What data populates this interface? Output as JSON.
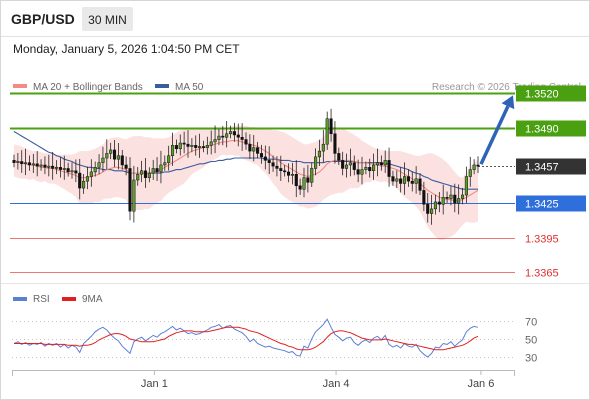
{
  "header": {
    "symbol": "GBP/USD",
    "interval": "30 MIN",
    "datetime": "Monday, January 5, 2026 1:04:50 PM CET",
    "credit": "Research © 2026 Trading Central"
  },
  "legend": {
    "ma20_label": "MA 20 + Bollinger Bands",
    "ma20_color": "#f28b82",
    "ma50_label": "MA 50",
    "ma50_color": "#3b5c9e",
    "rsi_label": "RSI",
    "rsi_color": "#5b7fd6",
    "rsi9_label": "9MA",
    "rsi9_color": "#e02020"
  },
  "chart_data": [
    {
      "type": "candlestick",
      "title": "GBP/USD",
      "ylim": [
        1.3355,
        1.3535
      ],
      "x_ticks": [
        {
          "label": "Jan 1",
          "at": 0.29
        },
        {
          "label": "Jan 4",
          "at": 0.66
        },
        {
          "label": "Jan 6",
          "at": 0.955
        }
      ],
      "levels": [
        {
          "label": "1.3520",
          "value": 1.352,
          "kind": "resistance",
          "color": "#4aa010",
          "text_color": "#ffffff"
        },
        {
          "label": "1.3490",
          "value": 1.349,
          "kind": "resistance",
          "color": "#4aa010",
          "text_color": "#ffffff"
        },
        {
          "label": "1.3457",
          "value": 1.3457,
          "kind": "current",
          "color": "#333333",
          "text_color": "#ffffff"
        },
        {
          "label": "1.3425",
          "value": 1.3425,
          "kind": "pivot",
          "color": "#2f6fdc",
          "text_color": "#ffffff"
        },
        {
          "label": "1.3395",
          "value": 1.3395,
          "kind": "support",
          "color": "#e04040",
          "text_color": "#e03030"
        },
        {
          "label": "1.3365",
          "value": 1.3365,
          "kind": "support",
          "color": "#e04040",
          "text_color": "#e03030"
        }
      ],
      "closes": [
        1.346,
        1.3461,
        1.3459,
        1.346,
        1.3458,
        1.3459,
        1.3457,
        1.3458,
        1.3456,
        1.3457,
        1.3455,
        1.3456,
        1.3454,
        1.3455,
        1.3452,
        1.3453,
        1.3451,
        1.3438,
        1.3444,
        1.3448,
        1.3452,
        1.3456,
        1.346,
        1.3464,
        1.3468,
        1.3471,
        1.3463,
        1.3466,
        1.3458,
        1.3455,
        1.3418,
        1.3445,
        1.345,
        1.3453,
        1.3447,
        1.3451,
        1.3455,
        1.3452,
        1.3458,
        1.346,
        1.3466,
        1.3475,
        1.3472,
        1.3477,
        1.3476,
        1.3474,
        1.3475,
        1.3473,
        1.3474,
        1.3473,
        1.3475,
        1.3478,
        1.348,
        1.3483,
        1.3482,
        1.3485,
        1.3487,
        1.3484,
        1.3482,
        1.348,
        1.3476,
        1.347,
        1.3473,
        1.3468,
        1.3465,
        1.3462,
        1.346,
        1.3457,
        1.3455,
        1.3453,
        1.3452,
        1.3449,
        1.345,
        1.344,
        1.3437,
        1.3447,
        1.3443,
        1.3455,
        1.3465,
        1.347,
        1.3476,
        1.3498,
        1.3485,
        1.3468,
        1.3462,
        1.3455,
        1.3458,
        1.346,
        1.3454,
        1.345,
        1.3454,
        1.3456,
        1.3453,
        1.3458,
        1.346,
        1.3458,
        1.3462,
        1.3448,
        1.3444,
        1.3446,
        1.3442,
        1.3448,
        1.3444,
        1.3442,
        1.3446,
        1.3436,
        1.3424,
        1.3416,
        1.342,
        1.3426,
        1.3424,
        1.343,
        1.3429,
        1.3432,
        1.3425,
        1.3429,
        1.3432,
        1.3448,
        1.3454,
        1.3458,
        1.3457
      ],
      "ma20": [
        1.3462,
        1.3461,
        1.346,
        1.3459,
        1.3458,
        1.3458,
        1.3457,
        1.3456,
        1.3456,
        1.3455,
        1.3455,
        1.3454,
        1.3453,
        1.3452,
        1.3451,
        1.345,
        1.3449,
        1.3447,
        1.3447,
        1.3447,
        1.3448,
        1.3449,
        1.345,
        1.3452,
        1.3454,
        1.3455,
        1.3456,
        1.3456,
        1.3455,
        1.3454,
        1.3451,
        1.3451,
        1.3451,
        1.3451,
        1.3451,
        1.3451,
        1.3452,
        1.3453,
        1.3454,
        1.3456,
        1.3458,
        1.346,
        1.3462,
        1.3464,
        1.3466,
        1.3468,
        1.347,
        1.3471,
        1.3472,
        1.3473,
        1.3474,
        1.3475,
        1.3476,
        1.3477,
        1.3478,
        1.3478,
        1.3479,
        1.3479,
        1.3479,
        1.3478,
        1.3477,
        1.3476,
        1.3475,
        1.3474,
        1.3472,
        1.347,
        1.3468,
        1.3465,
        1.3463,
        1.346,
        1.3458,
        1.3456,
        1.3454,
        1.3452,
        1.345,
        1.3449,
        1.3448,
        1.3449,
        1.345,
        1.3452,
        1.3455,
        1.3459,
        1.3461,
        1.3462,
        1.3462,
        1.3462,
        1.3462,
        1.3462,
        1.3461,
        1.346,
        1.346,
        1.346,
        1.3459,
        1.3459,
        1.3458,
        1.3457,
        1.3457,
        1.3456,
        1.3455,
        1.3454,
        1.3452,
        1.345,
        1.3448,
        1.3446,
        1.3444,
        1.3442,
        1.3439,
        1.3436,
        1.3434,
        1.3432,
        1.343,
        1.3429,
        1.3428,
        1.3428,
        1.3427,
        1.3427,
        1.3428,
        1.343,
        1.3432,
        1.3434,
        1.3436
      ],
      "bb_upper": [
        1.3476,
        1.3475,
        1.3474,
        1.3472,
        1.3471,
        1.347,
        1.347,
        1.3469,
        1.3468,
        1.3468,
        1.3468,
        1.3467,
        1.3467,
        1.3467,
        1.3467,
        1.3467,
        1.3468,
        1.347,
        1.347,
        1.347,
        1.3471,
        1.3472,
        1.3474,
        1.3476,
        1.3479,
        1.3481,
        1.3482,
        1.3482,
        1.3481,
        1.348,
        1.3482,
        1.3483,
        1.3483,
        1.3483,
        1.3482,
        1.3482,
        1.3481,
        1.3481,
        1.3481,
        1.3481,
        1.3482,
        1.3484,
        1.3486,
        1.3488,
        1.349,
        1.349,
        1.349,
        1.349,
        1.349,
        1.349,
        1.3489,
        1.3489,
        1.3489,
        1.3489,
        1.3489,
        1.349,
        1.3491,
        1.3492,
        1.3492,
        1.3492,
        1.3492,
        1.3491,
        1.3491,
        1.349,
        1.349,
        1.3489,
        1.3489,
        1.3488,
        1.3488,
        1.3487,
        1.3486,
        1.3484,
        1.3482,
        1.348,
        1.3478,
        1.3476,
        1.3476,
        1.3477,
        1.3478,
        1.348,
        1.3482,
        1.3488,
        1.349,
        1.3491,
        1.349,
        1.349,
        1.3488,
        1.3486,
        1.3484,
        1.3482,
        1.3479,
        1.3477,
        1.3475,
        1.3473,
        1.3472,
        1.3471,
        1.347,
        1.347,
        1.347,
        1.347,
        1.347,
        1.3469,
        1.3468,
        1.3467,
        1.3466,
        1.3466,
        1.3467,
        1.3468,
        1.3468,
        1.3467,
        1.3465,
        1.3463,
        1.346,
        1.3456,
        1.3452,
        1.3448,
        1.3447,
        1.3451,
        1.3456,
        1.346,
        1.3463
      ],
      "bb_lower": [
        1.3448,
        1.3447,
        1.3446,
        1.3446,
        1.3445,
        1.3446,
        1.3444,
        1.3443,
        1.3444,
        1.3442,
        1.3442,
        1.3441,
        1.3439,
        1.3437,
        1.3435,
        1.3433,
        1.343,
        1.3424,
        1.3424,
        1.3424,
        1.3425,
        1.3426,
        1.3426,
        1.3428,
        1.3429,
        1.3429,
        1.343,
        1.343,
        1.3429,
        1.3428,
        1.342,
        1.3419,
        1.3419,
        1.3419,
        1.342,
        1.342,
        1.3423,
        1.3425,
        1.3427,
        1.3431,
        1.3434,
        1.3436,
        1.3438,
        1.344,
        1.3442,
        1.3446,
        1.345,
        1.3452,
        1.3454,
        1.3456,
        1.3459,
        1.3461,
        1.3463,
        1.3465,
        1.3467,
        1.3466,
        1.3467,
        1.3466,
        1.3466,
        1.3464,
        1.3462,
        1.3461,
        1.3459,
        1.3458,
        1.3454,
        1.3451,
        1.3447,
        1.3442,
        1.3438,
        1.3433,
        1.343,
        1.3428,
        1.3426,
        1.3424,
        1.3422,
        1.3422,
        1.342,
        1.3421,
        1.3422,
        1.3424,
        1.3428,
        1.343,
        1.3432,
        1.3433,
        1.3434,
        1.3434,
        1.3436,
        1.3438,
        1.3438,
        1.3438,
        1.3441,
        1.3443,
        1.3443,
        1.3445,
        1.3444,
        1.3443,
        1.3444,
        1.3442,
        1.344,
        1.3438,
        1.3434,
        1.343,
        1.3428,
        1.3425,
        1.3422,
        1.3418,
        1.3411,
        1.3404,
        1.34,
        1.3396,
        1.3393,
        1.3393,
        1.3395,
        1.3396,
        1.3398,
        1.3402,
        1.3406,
        1.3409,
        1.3408,
        1.3408,
        1.3409
      ],
      "ma50": [
        1.3487,
        1.3485,
        1.3483,
        1.3481,
        1.3479,
        1.3477,
        1.3475,
        1.3473,
        1.3471,
        1.3469,
        1.3468,
        1.3466,
        1.3465,
        1.3463,
        1.3462,
        1.3461,
        1.3459,
        1.3458,
        1.3457,
        1.3456,
        1.3456,
        1.3455,
        1.3455,
        1.3454,
        1.3454,
        1.3454,
        1.3453,
        1.3453,
        1.3453,
        1.3452,
        1.3451,
        1.3451,
        1.3451,
        1.3451,
        1.3451,
        1.3451,
        1.3451,
        1.3451,
        1.3451,
        1.3452,
        1.3452,
        1.3453,
        1.3454,
        1.3454,
        1.3455,
        1.3456,
        1.3457,
        1.3458,
        1.3459,
        1.3459,
        1.346,
        1.3461,
        1.3461,
        1.3462,
        1.3462,
        1.3463,
        1.3463,
        1.3464,
        1.3464,
        1.3464,
        1.3464,
        1.3464,
        1.3464,
        1.3464,
        1.3464,
        1.3463,
        1.3463,
        1.3463,
        1.3463,
        1.3462,
        1.3462,
        1.3462,
        1.3461,
        1.3461,
        1.3461,
        1.346,
        1.346,
        1.346,
        1.346,
        1.346,
        1.346,
        1.3461,
        1.3461,
        1.3461,
        1.3461,
        1.3461,
        1.3461,
        1.3461,
        1.3461,
        1.346,
        1.346,
        1.346,
        1.346,
        1.346,
        1.346,
        1.346,
        1.3459,
        1.3459,
        1.3458,
        1.3457,
        1.3456,
        1.3455,
        1.3454,
        1.3452,
        1.3451,
        1.345,
        1.3448,
        1.3447,
        1.3445,
        1.3444,
        1.3443,
        1.3442,
        1.3441,
        1.344,
        1.3439,
        1.3438,
        1.3437,
        1.3437,
        1.3437,
        1.3437,
        1.3437
      ],
      "forecast_to": 1.352
    },
    {
      "type": "line",
      "title": "RSI",
      "ylim": [
        20,
        80
      ],
      "y_ticks": [
        70,
        50,
        30
      ],
      "series": [
        {
          "name": "RSI",
          "values": [
            45,
            47,
            44,
            46,
            43,
            45,
            44,
            46,
            42,
            45,
            43,
            45,
            41,
            44,
            40,
            43,
            41,
            35,
            45,
            49,
            53,
            58,
            61,
            63,
            60,
            55,
            51,
            48,
            42,
            38,
            34,
            47,
            50,
            52,
            48,
            51,
            54,
            52,
            56,
            58,
            61,
            64,
            60,
            62,
            59,
            56,
            57,
            55,
            56,
            58,
            60,
            63,
            64,
            66,
            62,
            64,
            65,
            61,
            59,
            57,
            53,
            47,
            50,
            45,
            43,
            41,
            42,
            40,
            39,
            38,
            37,
            35,
            36,
            32,
            31,
            42,
            40,
            50,
            58,
            62,
            66,
            72,
            63,
            55,
            52,
            48,
            51,
            52,
            46,
            43,
            47,
            49,
            46,
            51,
            53,
            49,
            54,
            44,
            41,
            43,
            40,
            45,
            42,
            41,
            44,
            37,
            33,
            30,
            34,
            41,
            40,
            45,
            44,
            47,
            42,
            46,
            49,
            58,
            62,
            64,
            63
          ]
        },
        {
          "name": "9MA",
          "values": [
            45,
            45,
            45,
            45,
            45,
            45,
            45,
            45,
            44,
            44,
            44,
            44,
            44,
            44,
            43,
            43,
            43,
            42,
            43,
            43,
            44,
            46,
            49,
            51,
            53,
            55,
            56,
            56,
            55,
            53,
            50,
            49,
            48,
            47,
            47,
            47,
            47,
            48,
            49,
            50,
            53,
            55,
            57,
            58,
            59,
            59,
            59,
            58,
            58,
            58,
            58,
            59,
            60,
            61,
            62,
            63,
            63,
            63,
            63,
            62,
            61,
            59,
            58,
            57,
            55,
            53,
            51,
            49,
            47,
            45,
            44,
            42,
            41,
            39,
            38,
            38,
            38,
            39,
            41,
            44,
            47,
            52,
            56,
            58,
            59,
            59,
            58,
            57,
            55,
            53,
            51,
            50,
            49,
            49,
            49,
            49,
            50,
            49,
            48,
            47,
            46,
            45,
            44,
            44,
            43,
            42,
            41,
            40,
            39,
            38,
            38,
            38,
            39,
            40,
            41,
            42,
            43,
            45,
            48,
            51,
            53
          ]
        }
      ]
    }
  ]
}
